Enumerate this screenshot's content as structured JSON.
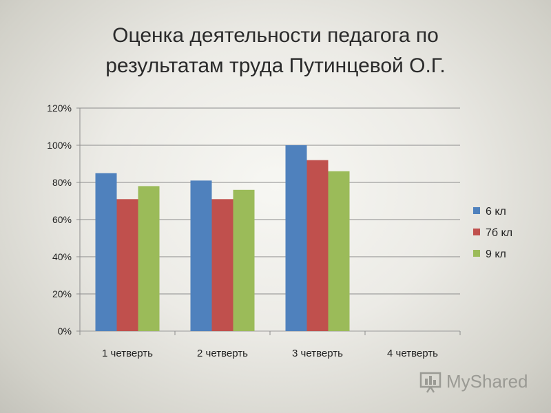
{
  "title_lines": [
    "Оценка деятельности педагога по",
    "результатам труда Путинцевой О.Г."
  ],
  "watermark": "MyShared",
  "chart_data": {
    "type": "bar",
    "title": "Оценка деятельности педагога по результатам труда Путинцевой О.Г.",
    "categories": [
      "1 четверть",
      "2 четверть",
      "3 четверть",
      "4 четверть"
    ],
    "series": [
      {
        "name": "6 кл",
        "color": "#4f81bd",
        "values": [
          85,
          81,
          100,
          null
        ]
      },
      {
        "name": "7б кл",
        "color": "#c0504d",
        "values": [
          71,
          71,
          92,
          null
        ]
      },
      {
        "name": "9 кл",
        "color": "#9bbb59",
        "values": [
          78,
          76,
          86,
          null
        ]
      }
    ],
    "yticks": [
      "0%",
      "20%",
      "40%",
      "60%",
      "80%",
      "100%",
      "120%"
    ],
    "ylim": [
      0,
      120
    ],
    "unit": "%",
    "grid": true,
    "legend": "right"
  }
}
